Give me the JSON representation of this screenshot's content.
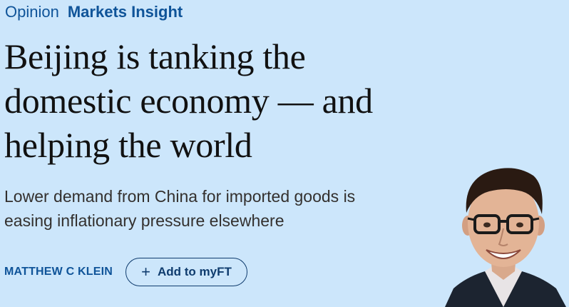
{
  "kicker": {
    "section": "Opinion",
    "topic": "Markets Insight"
  },
  "article": {
    "headline_lines": [
      "Beijing is tanking the",
      "domestic economy — and",
      "helping the world"
    ],
    "standfirst_lines": [
      "Lower demand from China for imported goods is",
      "easing inflationary pressure elsewhere"
    ],
    "author": "MATTHEW C KLEIN",
    "add_to_myft_label": "Add to myFT"
  },
  "icons": {
    "add": "plus-icon"
  },
  "colors": {
    "background": "#cce6fb",
    "accent": "#0f5499",
    "headline": "#111111"
  }
}
